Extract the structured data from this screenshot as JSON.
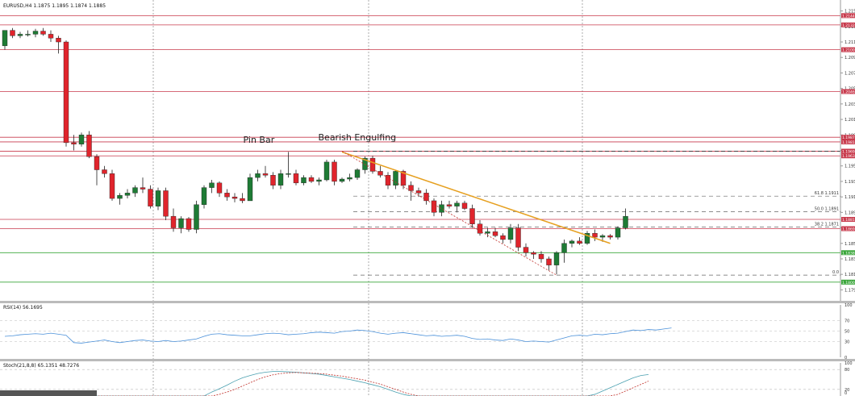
{
  "window": {
    "symbol_info": "EURUSD,H4  1.1875 1.1895 1.1874 1.1885",
    "rsi_info": "RSI(14) 56.1695",
    "stoch_info": "Stoch(21,8,8) 65.1351 48.7276"
  },
  "annotations": {
    "pin_bar": "Pin Bar",
    "bearish_engulfing": "Bearish Engulfing"
  },
  "colors": {
    "bull": "#1e7b35",
    "bear": "#e0242c",
    "resistance": "#c83a4c",
    "support": "#3aa63a",
    "trendline": "#e6a020",
    "rsi_line": "#4a90d9",
    "stoch_main": "#4aa0b0",
    "stoch_signal": "#c0302a"
  },
  "chart_data": [
    {
      "type": "candlestick",
      "ylim": [
        1.178,
        1.216
      ],
      "price_axis_ticks": [
        "1.215",
        "1.213",
        "1.211",
        "1.209",
        "1.207",
        "1.205",
        "1.203",
        "1.201",
        "1.199",
        "1.197",
        "1.195",
        "1.193",
        "1.191",
        "1.189",
        "1.187",
        "1.185",
        "1.183",
        "1.181",
        "1.179"
      ],
      "candles": [
        [
          1.2105,
          1.2125,
          1.21,
          1.2125
        ],
        [
          1.2125,
          1.2128,
          1.2115,
          1.2118
        ],
        [
          1.2118,
          1.2123,
          1.2115,
          1.212
        ],
        [
          1.212,
          1.2125,
          1.2117,
          1.212
        ],
        [
          1.212,
          1.2127,
          1.2116,
          1.2124
        ],
        [
          1.2124,
          1.2128,
          1.2118,
          1.212
        ],
        [
          1.212,
          1.2125,
          1.211,
          1.2115
        ],
        [
          1.2115,
          1.2118,
          1.2095,
          1.211
        ],
        [
          1.211,
          1.2112,
          1.1975,
          1.198
        ],
        [
          1.198,
          1.199,
          1.197,
          1.1978
        ],
        [
          1.1978,
          1.1993,
          1.1975,
          1.199
        ],
        [
          1.199,
          1.1995,
          1.196,
          1.1962
        ],
        [
          1.1962,
          1.1965,
          1.1925,
          1.1945
        ],
        [
          1.1945,
          1.195,
          1.1935,
          1.194
        ],
        [
          1.194,
          1.1945,
          1.1905,
          1.1908
        ],
        [
          1.1908,
          1.1915,
          1.19,
          1.1912
        ],
        [
          1.1912,
          1.192,
          1.1908,
          1.1915
        ],
        [
          1.1915,
          1.1925,
          1.191,
          1.1922
        ],
        [
          1.1922,
          1.1935,
          1.1915,
          1.192
        ],
        [
          1.192,
          1.1925,
          1.1895,
          1.1898
        ],
        [
          1.1898,
          1.1922,
          1.1893,
          1.1918
        ],
        [
          1.1918,
          1.1922,
          1.188,
          1.1885
        ],
        [
          1.1885,
          1.1895,
          1.1865,
          1.187
        ],
        [
          1.187,
          1.1885,
          1.1863,
          1.1882
        ],
        [
          1.1882,
          1.1884,
          1.1865,
          1.1868
        ],
        [
          1.1868,
          1.1905,
          1.1863,
          1.19
        ],
        [
          1.19,
          1.1925,
          1.1895,
          1.1922
        ],
        [
          1.1922,
          1.1932,
          1.1915,
          1.1928
        ],
        [
          1.1928,
          1.193,
          1.191,
          1.1915
        ],
        [
          1.1915,
          1.192,
          1.1905,
          1.191
        ],
        [
          1.191,
          1.1915,
          1.1903,
          1.1908
        ],
        [
          1.1908,
          1.1915,
          1.1902,
          1.1905
        ],
        [
          1.1905,
          1.194,
          1.1905,
          1.1935
        ],
        [
          1.1935,
          1.1945,
          1.193,
          1.194
        ],
        [
          1.194,
          1.195,
          1.1935,
          1.1938
        ],
        [
          1.1938,
          1.1942,
          1.192,
          1.1925
        ],
        [
          1.1925,
          1.1945,
          1.192,
          1.194
        ],
        [
          1.194,
          1.1968,
          1.1935,
          1.194
        ],
        [
          1.194,
          1.1945,
          1.1925,
          1.1928
        ],
        [
          1.1928,
          1.1938,
          1.1925,
          1.1935
        ],
        [
          1.1935,
          1.1938,
          1.1928,
          1.193
        ],
        [
          1.193,
          1.1935,
          1.1925,
          1.1932
        ],
        [
          1.1932,
          1.1958,
          1.193,
          1.1955
        ],
        [
          1.1955,
          1.1958,
          1.1925,
          1.193
        ],
        [
          1.193,
          1.1935,
          1.1928,
          1.1933
        ],
        [
          1.1933,
          1.194,
          1.193,
          1.1935
        ],
        [
          1.1935,
          1.1947,
          1.1932,
          1.1945
        ],
        [
          1.1945,
          1.1962,
          1.194,
          1.196
        ],
        [
          1.196,
          1.1963,
          1.194,
          1.1943
        ],
        [
          1.1943,
          1.195,
          1.1935,
          1.1938
        ],
        [
          1.1938,
          1.1942,
          1.192,
          1.1925
        ],
        [
          1.1925,
          1.1945,
          1.192,
          1.1943
        ],
        [
          1.1943,
          1.1945,
          1.192,
          1.1925
        ],
        [
          1.1925,
          1.193,
          1.1905,
          1.1918
        ],
        [
          1.1918,
          1.1922,
          1.191,
          1.1915
        ],
        [
          1.1915,
          1.192,
          1.19,
          1.1905
        ],
        [
          1.1905,
          1.1908,
          1.1885,
          1.189
        ],
        [
          1.189,
          1.1905,
          1.1885,
          1.19
        ],
        [
          1.19,
          1.1905,
          1.1895,
          1.1898
        ],
        [
          1.1898,
          1.1905,
          1.189,
          1.1902
        ],
        [
          1.1902,
          1.1905,
          1.1893,
          1.1895
        ],
        [
          1.1895,
          1.19,
          1.187,
          1.1875
        ],
        [
          1.1875,
          1.188,
          1.186,
          1.1863
        ],
        [
          1.1863,
          1.187,
          1.1858,
          1.1865
        ],
        [
          1.1865,
          1.187,
          1.1858,
          1.186
        ],
        [
          1.186,
          1.1863,
          1.185,
          1.1855
        ],
        [
          1.1855,
          1.1875,
          1.185,
          1.187
        ],
        [
          1.187,
          1.1875,
          1.184,
          1.1845
        ],
        [
          1.1845,
          1.185,
          1.1833,
          1.1838
        ],
        [
          1.1838,
          1.184,
          1.183,
          1.1836
        ],
        [
          1.1836,
          1.184,
          1.1825,
          1.183
        ],
        [
          1.183,
          1.1833,
          1.1815,
          1.1822
        ],
        [
          1.1822,
          1.184,
          1.181,
          1.1838
        ],
        [
          1.1838,
          1.1855,
          1.1825,
          1.185
        ],
        [
          1.185,
          1.1855,
          1.1845,
          1.1853
        ],
        [
          1.1853,
          1.1858,
          1.1848,
          1.185
        ],
        [
          1.185,
          1.1866,
          1.1848,
          1.1863
        ],
        [
          1.1863,
          1.1868,
          1.1853,
          1.1858
        ],
        [
          1.1858,
          1.1862,
          1.1852,
          1.186
        ],
        [
          1.186,
          1.1862,
          1.1855,
          1.1858
        ],
        [
          1.1858,
          1.1872,
          1.1855,
          1.187
        ],
        [
          1.187,
          1.1895,
          1.1868,
          1.1885
        ]
      ],
      "horizontal_levels": [
        {
          "price": 1.2144,
          "label": "1.2144",
          "kind": "resistance"
        },
        {
          "price": 1.2132,
          "label": "1.2132",
          "kind": "resistance"
        },
        {
          "price": 1.21,
          "label": "1.2100",
          "kind": "resistance"
        },
        {
          "price": 1.2046,
          "label": "1.2046",
          "kind": "resistance"
        },
        {
          "price": 1.1987,
          "label": "1.1987",
          "kind": "resistance"
        },
        {
          "price": 1.1981,
          "label": "1.1981",
          "kind": "resistance"
        },
        {
          "price": 1.1969,
          "label": "1.1969",
          "kind": "resistance"
        },
        {
          "price": 1.1963,
          "label": "1.1963",
          "kind": "resistance"
        },
        {
          "price": 1.1881,
          "label": "1.1881",
          "kind": "resistance"
        },
        {
          "price": 1.1869,
          "label": "1.1869",
          "kind": "resistance"
        },
        {
          "price": 1.1838,
          "label": "1.1838",
          "kind": "support"
        },
        {
          "price": 1.18,
          "label": "1.1800",
          "kind": "support"
        }
      ],
      "fibonacci_levels": [
        {
          "price": 1.1911,
          "label": "61.8 1.1911"
        },
        {
          "price": 1.1891,
          "label": "50.0 1.1891"
        },
        {
          "price": 1.1871,
          "label": "38.2 1.1871"
        },
        {
          "price": 1.1809,
          "label": "0.0"
        }
      ],
      "trendline_from": {
        "bar": 44,
        "price": 1.1968
      },
      "trendline_to": {
        "bar": 79,
        "price": 1.185
      }
    },
    {
      "type": "line",
      "name": "RSI(14)",
      "ylim": [
        0,
        100
      ],
      "tick_labels": [
        "100",
        "70",
        "50",
        "30",
        "0"
      ],
      "levels": [
        70,
        50,
        30
      ],
      "values": [
        40,
        41,
        43,
        44,
        45,
        44,
        46,
        44,
        42,
        28,
        27,
        29,
        31,
        33,
        30,
        28,
        30,
        32,
        33,
        31,
        30,
        32,
        30,
        31,
        33,
        35,
        40,
        44,
        45,
        43,
        42,
        41,
        41,
        43,
        45,
        46,
        45,
        43,
        44,
        45,
        47,
        48,
        47,
        46,
        49,
        50,
        52,
        51,
        49,
        46,
        44,
        46,
        47,
        45,
        43,
        41,
        42,
        40,
        41,
        42,
        40,
        36,
        34,
        35,
        33,
        32,
        35,
        33,
        30,
        31,
        30,
        29,
        33,
        37,
        41,
        42,
        41,
        44,
        43,
        45,
        46,
        49,
        52,
        51,
        53,
        52,
        54,
        56
      ]
    },
    {
      "type": "line",
      "name": "Stoch(21,8,8)",
      "ylim": [
        0,
        100
      ],
      "tick_labels": [
        "100",
        "80",
        "20",
        "0"
      ],
      "levels": [
        80,
        20
      ],
      "values": [
        0,
        0,
        0,
        0,
        0,
        0,
        0,
        0,
        0,
        0,
        0,
        0,
        0,
        0,
        0,
        0,
        0,
        0,
        0,
        0,
        0,
        0,
        0,
        0,
        0,
        0,
        0,
        12,
        22,
        33,
        45,
        55,
        62,
        68,
        72,
        74,
        74,
        73,
        72,
        70,
        68,
        66,
        62,
        58,
        54,
        50,
        45,
        40,
        34,
        28,
        20,
        12,
        5,
        0,
        0,
        0,
        0,
        0,
        0,
        0,
        0,
        0,
        0,
        0,
        0,
        0,
        0,
        0,
        0,
        0,
        0,
        0,
        0,
        0,
        0,
        0,
        0,
        5,
        15,
        25,
        35,
        45,
        55,
        62,
        65
      ],
      "signal": [
        0,
        0,
        0,
        0,
        0,
        0,
        0,
        0,
        0,
        0,
        0,
        0,
        0,
        0,
        0,
        0,
        0,
        0,
        0,
        0,
        0,
        0,
        0,
        0,
        0,
        0,
        0,
        0,
        5,
        12,
        20,
        30,
        40,
        50,
        58,
        64,
        68,
        70,
        71,
        70,
        69,
        68,
        66,
        63,
        60,
        56,
        52,
        48,
        42,
        36,
        28,
        20,
        12,
        5,
        0,
        0,
        0,
        0,
        0,
        0,
        0,
        0,
        0,
        0,
        0,
        0,
        0,
        0,
        0,
        0,
        0,
        0,
        0,
        0,
        0,
        0,
        0,
        0,
        0,
        0,
        5,
        15,
        25,
        35,
        45
      ]
    }
  ]
}
